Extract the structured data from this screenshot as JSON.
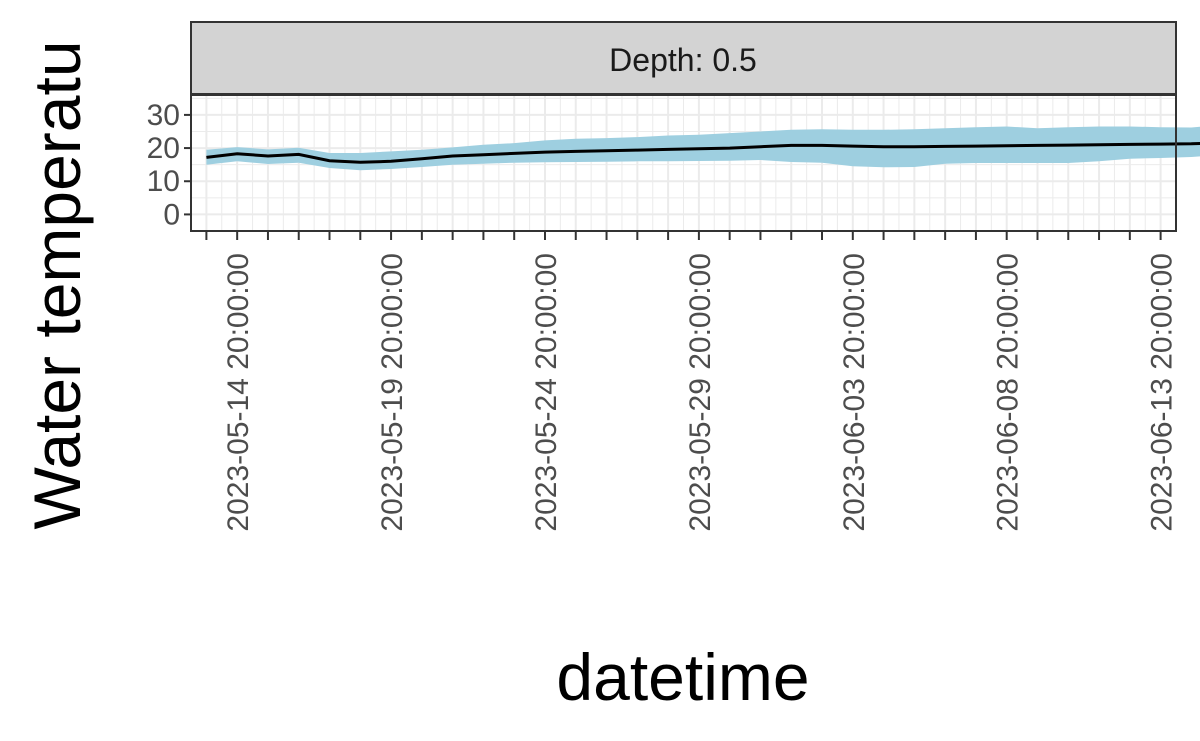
{
  "chart_data": {
    "type": "line",
    "facet_label": "Depth: 0.5",
    "xlabel": "datetime",
    "ylabel": "Water temperatu",
    "ylim": [
      -5,
      36
    ],
    "y_ticks": [
      0,
      10,
      20,
      30
    ],
    "y_tick_labels": [
      "0",
      "10",
      "20",
      "30"
    ],
    "x_start": "2023-05-13 20:00:00",
    "x_end": "2023-06-13 20:00:00",
    "x_range": [
      "2023-05-13 08:00:00",
      "2023-06-14 08:00:00"
    ],
    "x_tick_labels": [
      "2023-05-14 20:00:00",
      "2023-05-19 20:00:00",
      "2023-05-24 20:00:00",
      "2023-05-29 20:00:00",
      "2023-06-03 20:00:00",
      "2023-06-08 20:00:00",
      "2023-06-13 20:00:00"
    ],
    "series": [
      {
        "values": [
          17.2,
          18.3,
          17.6,
          18.1,
          16.2,
          15.7,
          16.0,
          16.8,
          17.6,
          18.0,
          18.4,
          18.8,
          19.0,
          19.2,
          19.4,
          19.6,
          19.8,
          20.0,
          20.4,
          20.8,
          20.8,
          20.6,
          20.4,
          20.4,
          20.5,
          20.6,
          20.7,
          20.8,
          20.9,
          21.0,
          21.1,
          21.2,
          21.3,
          21.6,
          21.7,
          22.0,
          22.2
        ],
        "upper": [
          19.5,
          20.3,
          19.6,
          20.1,
          18.5,
          18.5,
          19.0,
          19.5,
          20.2,
          21.0,
          21.5,
          22.3,
          22.8,
          23.0,
          23.3,
          23.8,
          24.0,
          24.5,
          25.0,
          25.5,
          25.7,
          25.5,
          25.5,
          25.7,
          26.0,
          26.3,
          26.5,
          26.0,
          26.3,
          26.5,
          26.5,
          26.3,
          26.2,
          27.0,
          27.3,
          27.5,
          27.6
        ],
        "lower": [
          15.0,
          16.0,
          15.2,
          15.6,
          14.0,
          13.3,
          13.7,
          14.3,
          15.0,
          15.3,
          15.6,
          15.7,
          15.8,
          15.9,
          16.0,
          16.0,
          16.1,
          16.2,
          16.4,
          15.8,
          15.6,
          14.5,
          14.2,
          14.3,
          15.3,
          15.5,
          15.5,
          15.5,
          15.5,
          16.0,
          16.8,
          17.0,
          17.3,
          18.0,
          17.5,
          17.8,
          18.5
        ]
      }
    ],
    "grid": true,
    "colors": {
      "line": "#000000",
      "ribbon": "#9ecfe0",
      "panel_bg": "#ffffff",
      "grid": "#ebebeb",
      "strip_bg": "#d9d9d9",
      "border": "#333333"
    }
  }
}
